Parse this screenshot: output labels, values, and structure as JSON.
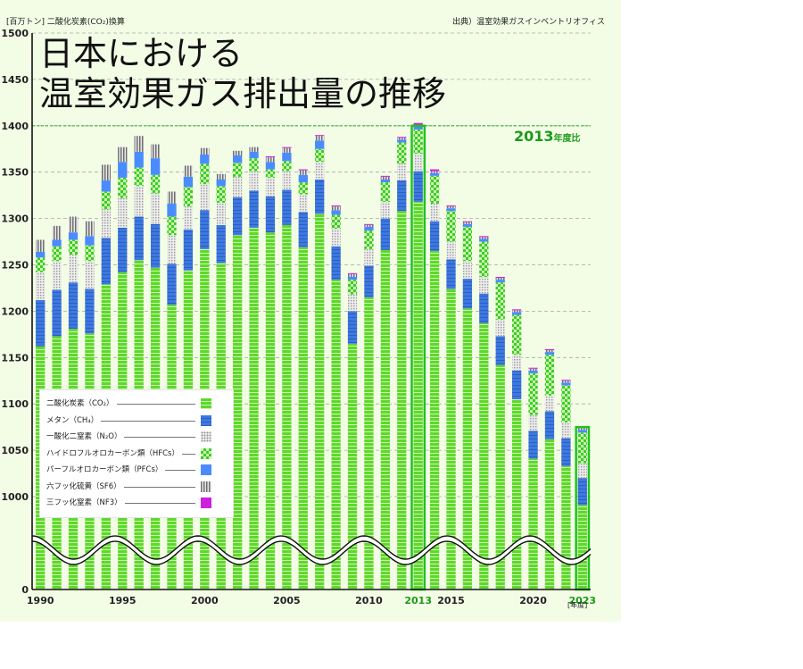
{
  "header": {
    "unit": "[百万トン]  二酸化炭素(CO₂)換算",
    "source": "出典）温室効果ガスインベントリオフィス",
    "title_line1": "日本における",
    "title_line2": "温室効果ガス排出量の推移",
    "baseline_label": "2013",
    "baseline_suffix": "年度比",
    "x_unit": "[年度]"
  },
  "chart_data": {
    "type": "bar",
    "stacked": true,
    "x": [
      1990,
      1991,
      1992,
      1993,
      1994,
      1995,
      1996,
      1997,
      1998,
      1999,
      2000,
      2001,
      2002,
      2003,
      2004,
      2005,
      2006,
      2007,
      2008,
      2009,
      2010,
      2011,
      2012,
      2013,
      2014,
      2015,
      2016,
      2017,
      2018,
      2019,
      2020,
      2021,
      2022,
      2023
    ],
    "x_tick_labels": [
      "1990",
      "1995",
      "2000",
      "2005",
      "2010",
      "2013",
      "2015",
      "2020",
      "2023"
    ],
    "y_tick_labels": [
      "0",
      "1000",
      "1050",
      "1100",
      "1150",
      "1200",
      "1250",
      "1300",
      "1350",
      "1400",
      "1450",
      "1500"
    ],
    "y_axis_break": [
      0,
      1000
    ],
    "ylim": [
      1000,
      1500
    ],
    "highlight_year": 2013,
    "highlight_reference_value": 1400,
    "grid": true,
    "legend_position": "bottom-left",
    "series": [
      {
        "name": "二酸化炭素（CO₂）",
        "color": "#5ed82c",
        "values": [
          1162,
          1173,
          1181,
          1176,
          1229,
          1242,
          1255,
          1247,
          1207,
          1244,
          1267,
          1252,
          1282,
          1290,
          1285,
          1293,
          1269,
          1305,
          1234,
          1165,
          1215,
          1266,
          1308,
          1318,
          1265,
          1224,
          1203,
          1187,
          1142,
          1105,
          1041,
          1062,
          1033,
          991
        ]
      },
      {
        "name": "メタン（CH₄）",
        "color": "#3e78e0",
        "values": [
          50,
          50,
          50,
          48,
          50,
          48,
          47,
          47,
          44,
          44,
          42,
          41,
          41,
          40,
          39,
          38,
          38,
          37,
          36,
          35,
          34,
          34,
          33,
          33,
          32,
          32,
          32,
          32,
          31,
          31,
          30,
          30,
          30,
          29
        ]
      },
      {
        "name": "一酸化二窒素（N₂O）",
        "color": "#bdbdbd",
        "values": [
          30,
          31,
          30,
          30,
          31,
          32,
          33,
          33,
          31,
          25,
          28,
          24,
          22,
          21,
          20,
          20,
          19,
          19,
          19,
          18,
          18,
          18,
          18,
          19,
          19,
          19,
          19,
          18,
          18,
          17,
          17,
          17,
          17,
          16
        ]
      },
      {
        "name": "ハイドロフルオロカーボン類（HFCs）",
        "color": "#5ed82c",
        "values": [
          16,
          16,
          16,
          17,
          19,
          22,
          20,
          20,
          20,
          21,
          22,
          18,
          15,
          14,
          9,
          11,
          13,
          14,
          15,
          16,
          20,
          21,
          23,
          26,
          30,
          33,
          37,
          38,
          40,
          43,
          45,
          44,
          40,
          33
        ]
      },
      {
        "name": "パーフルオロカーボン類（PFCs）",
        "color": "#4a8cff",
        "values": [
          6,
          7,
          8,
          10,
          12,
          17,
          17,
          18,
          14,
          11,
          10,
          7,
          8,
          7,
          8,
          9,
          8,
          9,
          5,
          3,
          4,
          3,
          3,
          3,
          3,
          3,
          3,
          3,
          3,
          3,
          3,
          3,
          3,
          3
        ]
      },
      {
        "name": "六フッ化硫黄（SF6）",
        "color": "#8a8a8a",
        "values": [
          13,
          15,
          17,
          16,
          17,
          16,
          17,
          15,
          13,
          12,
          7,
          6,
          5,
          5,
          5,
          5,
          5,
          5,
          4,
          3,
          2,
          3,
          2,
          2,
          2,
          2,
          2,
          2,
          2,
          2,
          2,
          2,
          2,
          2
        ]
      },
      {
        "name": "三フッ化窒素（NF3）",
        "color": "#cc22dd",
        "values": [
          0,
          0,
          0,
          0,
          0,
          0,
          0,
          0,
          0,
          0,
          0,
          0,
          0,
          0,
          1,
          1,
          1,
          1,
          1,
          1,
          1,
          1,
          1,
          2,
          2,
          1,
          1,
          1,
          1,
          1,
          1,
          1,
          1,
          1
        ]
      }
    ],
    "legend_entries": [
      {
        "name": "二酸化炭素（CO₂）",
        "series_index": 0
      },
      {
        "name": "メタン（CH₄）",
        "series_index": 1
      },
      {
        "name": "一酸化二窒素（N₂O）",
        "series_index": 2
      },
      {
        "name": "ハイドロフルオロカーボン類（HFCs）",
        "series_index": 3
      },
      {
        "name": "パーフルオロカーボン類（PFCs）",
        "series_index": 4
      },
      {
        "name": "六フッ化硫黄（SF6）",
        "series_index": 5
      },
      {
        "name": "三フッ化窒素（NF3）",
        "series_index": 6
      }
    ]
  }
}
